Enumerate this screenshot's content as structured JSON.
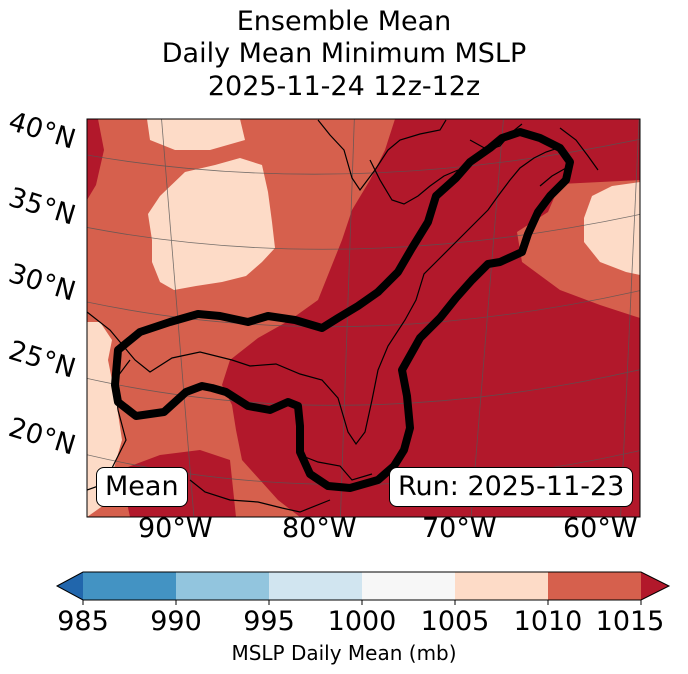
{
  "title": {
    "line1": "Ensemble Mean",
    "line2": "Daily Mean Minimum MSLP",
    "line3": "2025-11-24 12z-12z"
  },
  "map": {
    "lat_labels": [
      "40°N",
      "35°N",
      "30°N",
      "25°N",
      "20°N"
    ],
    "lon_labels": [
      "90°W",
      "80°W",
      "70°W",
      "60°W"
    ],
    "mean_box": "Mean",
    "run_box": "Run: 2025-11-23"
  },
  "colorbar": {
    "ticks": [
      "985",
      "990",
      "995",
      "1000",
      "1005",
      "1010",
      "1015"
    ],
    "label": "MSLP Daily Mean (mb)",
    "colors": {
      "below": "#2166ac",
      "985-990": "#4393c3",
      "990-995": "#92c5de",
      "995-1000": "#d1e5f0",
      "1000-1005": "#f7f7f7",
      "1005-1010": "#fddbc7",
      "1010-1015": "#d6604d",
      "above": "#b2182b"
    }
  }
}
